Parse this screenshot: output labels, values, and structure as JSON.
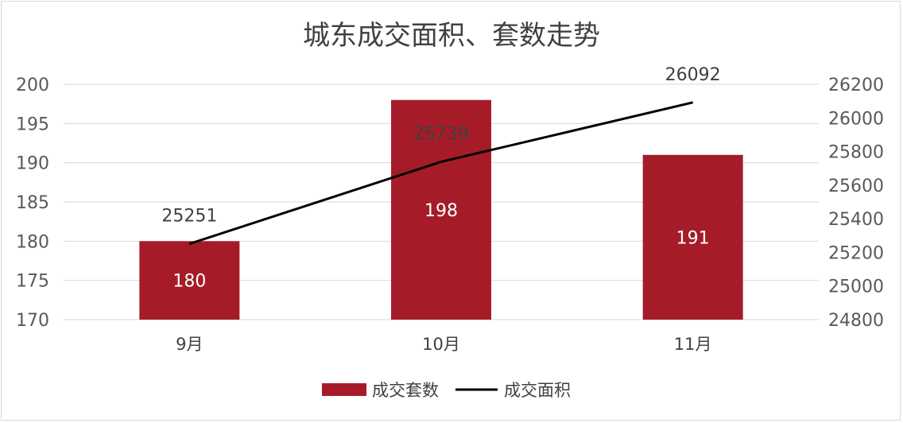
{
  "chart_data": {
    "type": "bar+line",
    "title": "城东成交面积、套数走势",
    "categories": [
      "9月",
      "10月",
      "11月"
    ],
    "series": [
      {
        "name": "成交套数",
        "type": "bar",
        "axis": "left",
        "values": [
          180,
          198,
          191
        ],
        "data_labels": [
          "180",
          "198",
          "191"
        ]
      },
      {
        "name": "成交面积",
        "type": "line",
        "axis": "right",
        "values": [
          25251,
          25739,
          26092
        ],
        "data_labels": [
          "25251",
          "25739",
          "26092"
        ]
      }
    ],
    "y_left": {
      "min": 170,
      "max": 200,
      "step": 5,
      "ticks": [
        "170",
        "175",
        "180",
        "185",
        "190",
        "195",
        "200"
      ]
    },
    "y_right": {
      "min": 24800,
      "max": 26200,
      "step": 200,
      "ticks": [
        "24800",
        "25000",
        "25200",
        "25400",
        "25600",
        "25800",
        "26000",
        "26200"
      ]
    },
    "grid": true,
    "legend_position": "bottom",
    "colors": {
      "bar": "#a51c28",
      "line": "#000000",
      "grid": "#d9d9d9"
    }
  }
}
